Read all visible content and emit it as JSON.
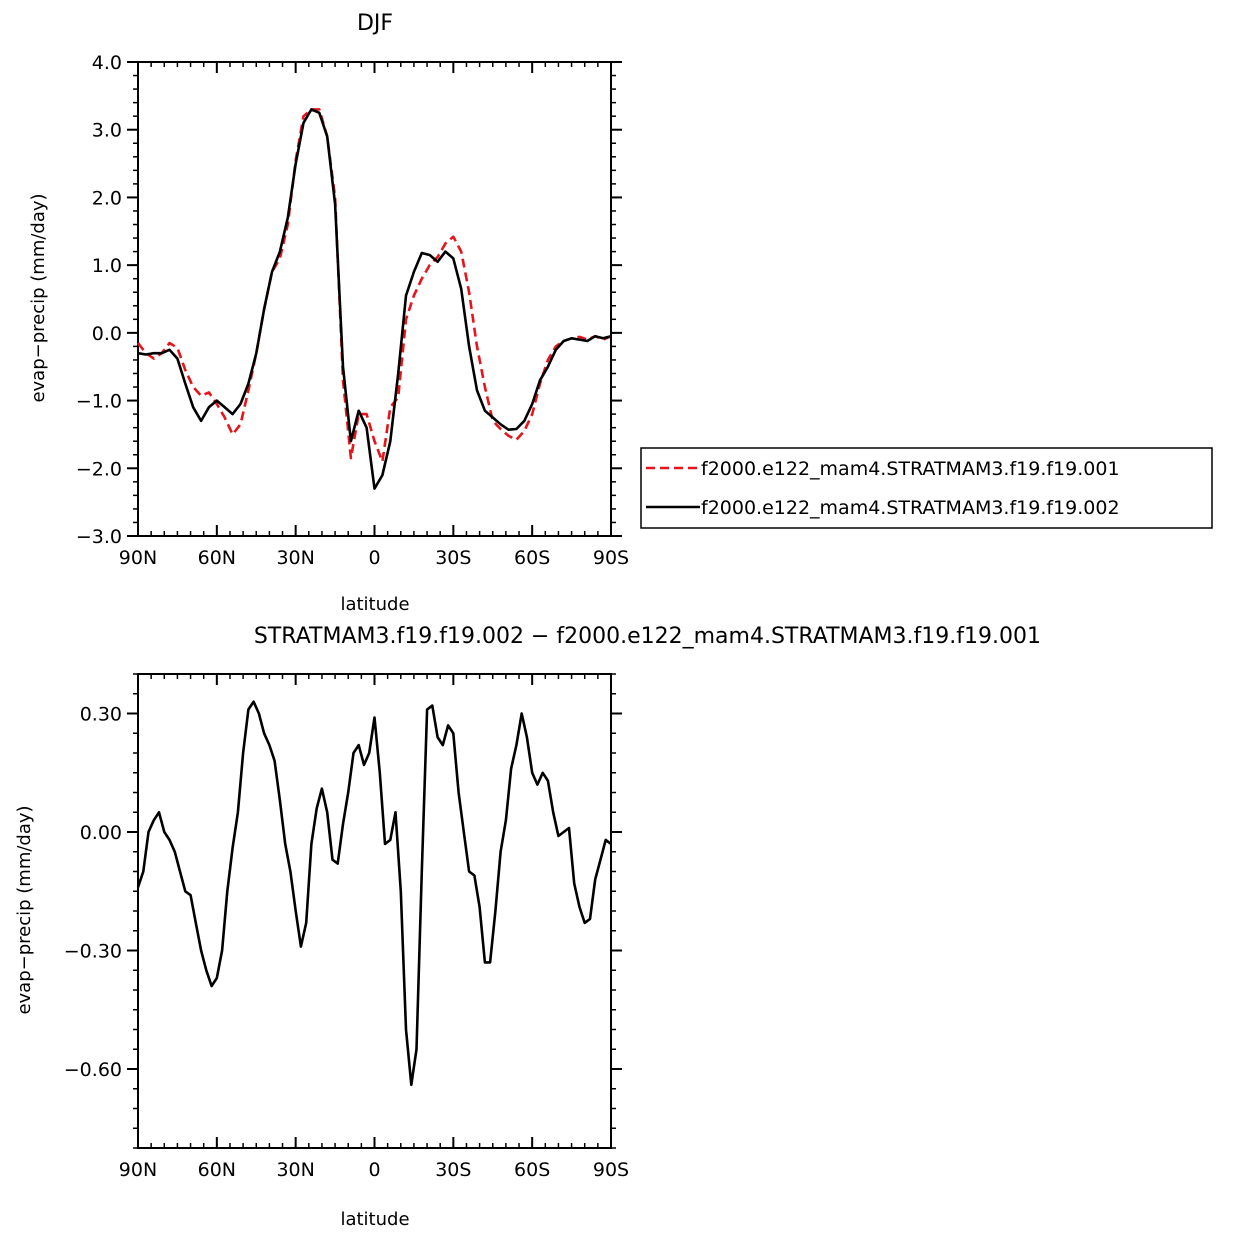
{
  "chart_data": [
    {
      "type": "line",
      "title": "DJF",
      "xlabel": "latitude",
      "ylabel": "evap−precip (mm/day)",
      "xlim": [
        90,
        -90
      ],
      "ylim": [
        -3.0,
        4.0
      ],
      "xticks": [
        90,
        60,
        30,
        0,
        -30,
        -60,
        -90
      ],
      "xtick_labels": [
        "90N",
        "60N",
        "30N",
        "0",
        "30S",
        "60S",
        "90S"
      ],
      "yticks": [
        4.0,
        3.0,
        2.0,
        1.0,
        0.0,
        -1.0,
        -2.0,
        -3.0
      ],
      "ytick_labels": [
        "4.0",
        "3.0",
        "2.0",
        "1.0",
        "0.0",
        "−1.0",
        "−2.0",
        "−3.0"
      ],
      "grid": false,
      "legend_position": "right-outside",
      "series": [
        {
          "name": "f2000.e122_mam4.STRATMAM3.f19.f19.001",
          "color": "#e8141b",
          "style": "dashed",
          "x": [
            90,
            87,
            84,
            81,
            78,
            75,
            72,
            69,
            66,
            63,
            60,
            57,
            54,
            51,
            48,
            45,
            42,
            39,
            36,
            33,
            30,
            27,
            24,
            21,
            18,
            15,
            12,
            9,
            6,
            3,
            0,
            -3,
            -6,
            -9,
            -12,
            -15,
            -18,
            -21,
            -24,
            -27,
            -30,
            -33,
            -36,
            -39,
            -42,
            -45,
            -48,
            -51,
            -54,
            -57,
            -60,
            -63,
            -66,
            -69,
            -72,
            -75,
            -78,
            -81,
            -84,
            -87,
            -90
          ],
          "y": [
            -0.15,
            -0.3,
            -0.38,
            -0.3,
            -0.15,
            -0.22,
            -0.55,
            -0.8,
            -0.93,
            -0.88,
            -1.05,
            -1.25,
            -1.5,
            -1.35,
            -0.85,
            -0.3,
            0.35,
            0.9,
            1.1,
            1.6,
            2.55,
            3.2,
            3.3,
            3.3,
            2.9,
            2.0,
            -0.7,
            -1.85,
            -1.2,
            -1.2,
            -1.6,
            -1.9,
            -1.1,
            -0.95,
            0.2,
            0.55,
            0.8,
            1.0,
            1.12,
            1.32,
            1.42,
            1.2,
            0.6,
            -0.2,
            -0.8,
            -1.3,
            -1.42,
            -1.52,
            -1.58,
            -1.45,
            -1.2,
            -0.75,
            -0.4,
            -0.2,
            -0.12,
            -0.08,
            -0.06,
            -0.1,
            -0.05,
            -0.1,
            -0.05
          ]
        },
        {
          "name": "f2000.e122_mam4.STRATMAM3.f19.f19.002",
          "color": "#000000",
          "style": "solid",
          "x": [
            90,
            87,
            84,
            81,
            78,
            75,
            72,
            69,
            66,
            63,
            60,
            57,
            54,
            51,
            48,
            45,
            42,
            39,
            36,
            33,
            30,
            27,
            24,
            21,
            18,
            15,
            12,
            9,
            6,
            3,
            0,
            -3,
            -6,
            -9,
            -12,
            -15,
            -18,
            -21,
            -24,
            -27,
            -30,
            -33,
            -36,
            -39,
            -42,
            -45,
            -48,
            -51,
            -54,
            -57,
            -60,
            -63,
            -66,
            -69,
            -72,
            -75,
            -78,
            -81,
            -84,
            -87,
            -90
          ],
          "y": [
            -0.3,
            -0.32,
            -0.3,
            -0.3,
            -0.25,
            -0.38,
            -0.75,
            -1.1,
            -1.3,
            -1.1,
            -1.0,
            -1.1,
            -1.2,
            -1.05,
            -0.75,
            -0.3,
            0.35,
            0.9,
            1.2,
            1.7,
            2.5,
            3.1,
            3.3,
            3.25,
            2.9,
            1.9,
            -0.5,
            -1.6,
            -1.15,
            -1.4,
            -2.3,
            -2.1,
            -1.6,
            -0.6,
            0.55,
            0.9,
            1.18,
            1.15,
            1.05,
            1.2,
            1.1,
            0.65,
            -0.2,
            -0.85,
            -1.15,
            -1.25,
            -1.35,
            -1.43,
            -1.42,
            -1.3,
            -1.05,
            -0.7,
            -0.5,
            -0.25,
            -0.12,
            -0.08,
            -0.1,
            -0.12,
            -0.05,
            -0.08,
            -0.05
          ]
        }
      ]
    },
    {
      "type": "line",
      "title": "STRATMAM3.f19.f19.002 − f2000.e122_mam4.STRATMAM3.f19.f19.001",
      "xlabel": "latitude",
      "ylabel": "evap−precip (mm/day)",
      "xlim": [
        90,
        -90
      ],
      "ylim": [
        -0.8,
        0.4
      ],
      "xticks": [
        90,
        60,
        30,
        0,
        -30,
        -60,
        -90
      ],
      "xtick_labels": [
        "90N",
        "60N",
        "30N",
        "0",
        "30S",
        "60S",
        "90S"
      ],
      "yticks": [
        0.3,
        0.0,
        -0.3,
        -0.6
      ],
      "ytick_labels": [
        "0.30",
        "0.00",
        "−0.30",
        "−0.60"
      ],
      "grid": false,
      "series": [
        {
          "color": "#000000",
          "style": "solid",
          "x": [
            90,
            88,
            86,
            84,
            82,
            80,
            78,
            76,
            74,
            72,
            70,
            68,
            66,
            64,
            62,
            60,
            58,
            56,
            54,
            52,
            50,
            48,
            46,
            44,
            42,
            40,
            38,
            36,
            34,
            32,
            30,
            28,
            26,
            24,
            22,
            20,
            18,
            16,
            14,
            12,
            10,
            8,
            6,
            4,
            2,
            0,
            -2,
            -4,
            -6,
            -8,
            -10,
            -12,
            -14,
            -16,
            -18,
            -20,
            -22,
            -24,
            -26,
            -28,
            -30,
            -32,
            -34,
            -36,
            -38,
            -40,
            -42,
            -44,
            -46,
            -48,
            -50,
            -52,
            -54,
            -56,
            -58,
            -60,
            -62,
            -64,
            -66,
            -68,
            -70,
            -72,
            -74,
            -76,
            -78,
            -80,
            -82,
            -84,
            -86,
            -88,
            -90
          ],
          "y": [
            -0.14,
            -0.1,
            0.0,
            0.03,
            0.05,
            0.0,
            -0.02,
            -0.05,
            -0.1,
            -0.15,
            -0.16,
            -0.23,
            -0.3,
            -0.35,
            -0.39,
            -0.37,
            -0.3,
            -0.15,
            -0.04,
            0.05,
            0.2,
            0.31,
            0.33,
            0.3,
            0.25,
            0.22,
            0.18,
            0.08,
            -0.03,
            -0.1,
            -0.2,
            -0.29,
            -0.23,
            -0.03,
            0.06,
            0.11,
            0.05,
            -0.07,
            -0.08,
            0.02,
            0.1,
            0.2,
            0.22,
            0.17,
            0.2,
            0.29,
            0.15,
            -0.03,
            -0.02,
            0.05,
            -0.15,
            -0.5,
            -0.64,
            -0.55,
            -0.1,
            0.31,
            0.32,
            0.24,
            0.22,
            0.27,
            0.25,
            0.1,
            0.0,
            -0.1,
            -0.11,
            -0.19,
            -0.33,
            -0.33,
            -0.2,
            -0.05,
            0.03,
            0.16,
            0.22,
            0.3,
            0.24,
            0.15,
            0.12,
            0.15,
            0.13,
            0.05,
            -0.01,
            0.0,
            0.01,
            -0.13,
            -0.19,
            -0.23,
            -0.22,
            -0.12,
            -0.07,
            -0.02,
            -0.03
          ]
        }
      ]
    }
  ]
}
